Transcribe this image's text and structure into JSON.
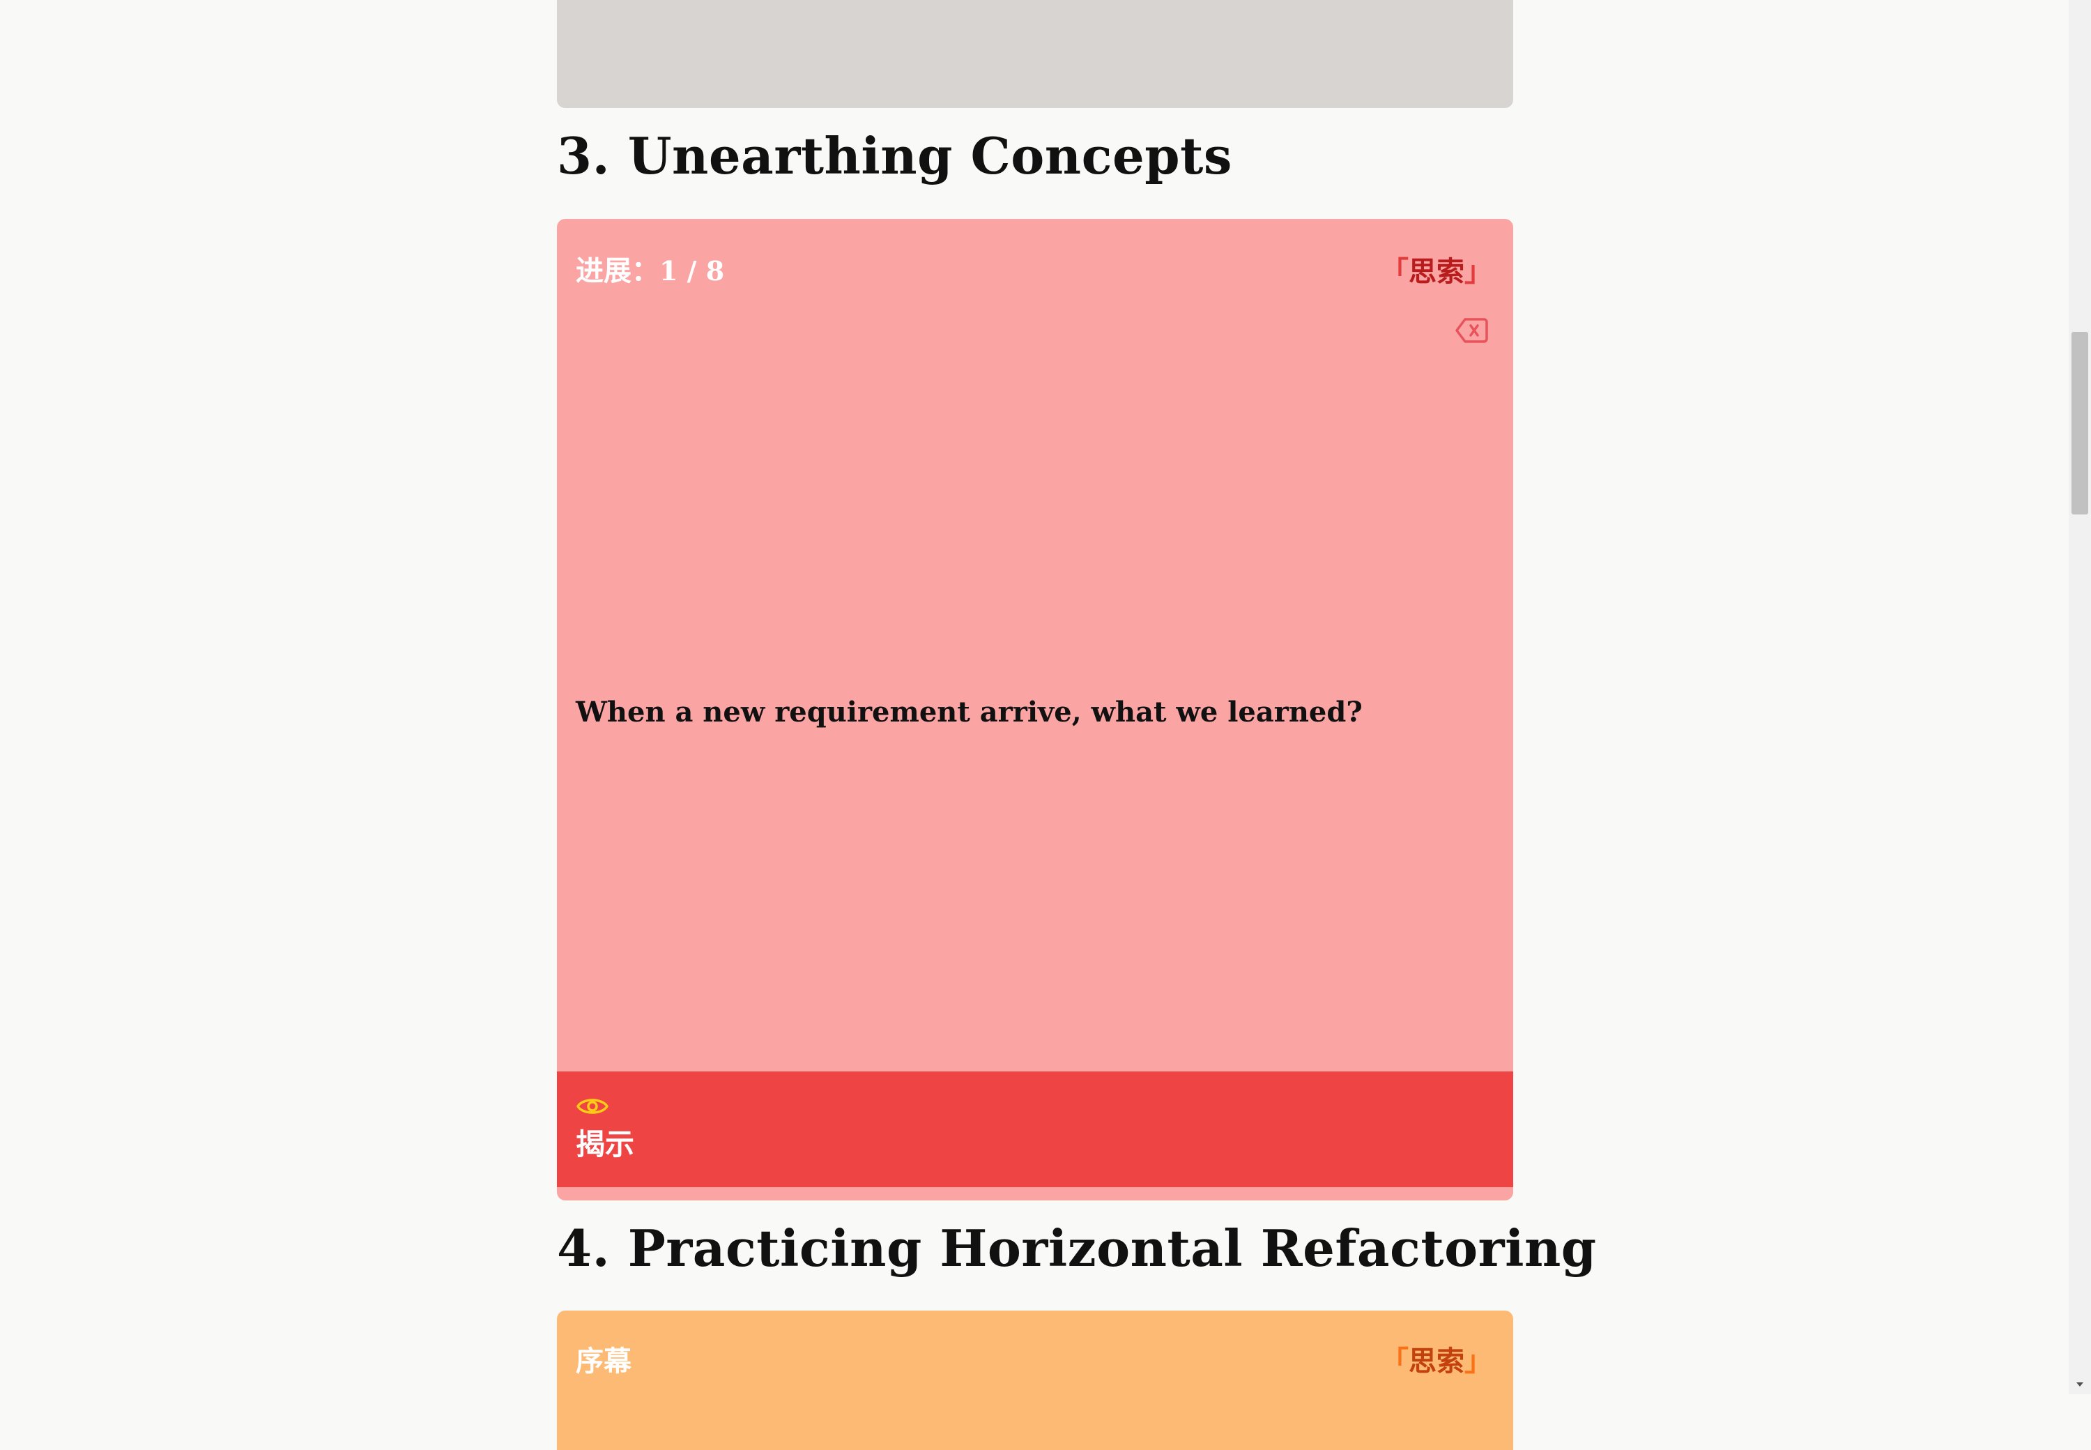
{
  "sections": {
    "concepts": {
      "heading": "3. Unearthing Concepts",
      "card": {
        "progress_label": "进展：",
        "progress_value": "1 / 8",
        "tag_open": "「",
        "tag_text": "思索",
        "tag_close": "」",
        "question": "When a new requirement arrive, what we learned?",
        "reveal_label": "揭示",
        "icons": [
          "clear-icon",
          "eye-icon"
        ]
      }
    },
    "refactoring": {
      "heading": "4. Practicing Horizontal Refactoring",
      "card": {
        "title": "序幕",
        "tag_open": "「",
        "tag_text": "思索",
        "tag_close": "」"
      }
    }
  },
  "colors": {
    "page_background": "#f9f9f7",
    "previous_card": "#d8d4d1",
    "concepts_card": "#fba4a4",
    "reveal_bar": "#ef4444",
    "refactoring_card": "#fdba74",
    "eye_icon": "#facc15"
  }
}
